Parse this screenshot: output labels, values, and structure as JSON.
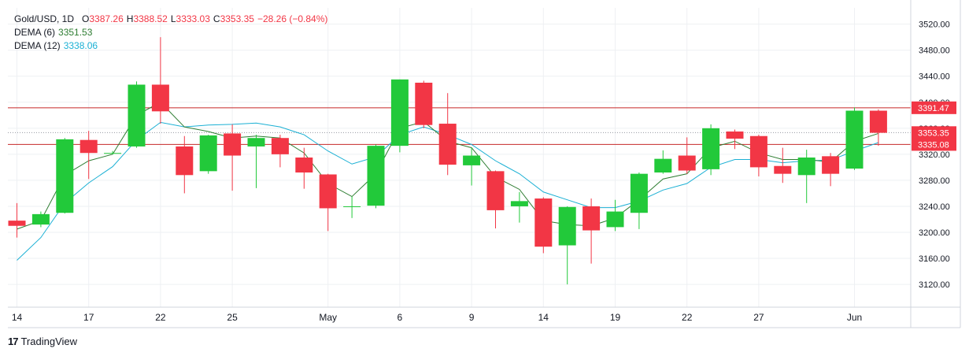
{
  "legend": {
    "symbol": "Gold/USD, 1D",
    "o_label": "O",
    "o": "3387.26",
    "h_label": "H",
    "h": "3388.52",
    "l_label": "L",
    "l": "3333.03",
    "c_label": "C",
    "c": "3353.35",
    "change": "−28.26 (−0.84%)",
    "dema6_label": "DEMA (6)",
    "dema6": "3351.53",
    "dema12_label": "DEMA (12)",
    "dema12": "3338.06"
  },
  "brand": {
    "logo": "17",
    "name": "TradingView"
  },
  "colors": {
    "up": "#22c93a",
    "down": "#f23645",
    "dema6": "#2e7d32",
    "dema12": "#1bb0d4",
    "level": "#c62828",
    "grid": "#eef0f3"
  },
  "chart_data": {
    "type": "candlestick",
    "y_range": [
      3085,
      3545
    ],
    "y_ticks": [
      "3520.00",
      "3480.00",
      "3440.00",
      "3400.00",
      "3360.00",
      "3320.00",
      "3280.00",
      "3240.00",
      "3200.00",
      "3160.00",
      "3120.00"
    ],
    "x_ticks": [
      {
        "index": 0,
        "label": "14"
      },
      {
        "index": 3,
        "label": "17"
      },
      {
        "index": 6,
        "label": "22"
      },
      {
        "index": 9,
        "label": "25"
      },
      {
        "index": 13,
        "label": "May"
      },
      {
        "index": 16,
        "label": "6"
      },
      {
        "index": 19,
        "label": "9"
      },
      {
        "index": 22,
        "label": "14"
      },
      {
        "index": 25,
        "label": "19"
      },
      {
        "index": 28,
        "label": "22"
      },
      {
        "index": 31,
        "label": "27"
      },
      {
        "index": 35,
        "label": "Jun"
      }
    ],
    "candles": [
      {
        "o": 3218,
        "h": 3245,
        "l": 3192,
        "c": 3210
      },
      {
        "o": 3212,
        "h": 3232,
        "l": 3208,
        "c": 3228
      },
      {
        "o": 3230,
        "h": 3345,
        "l": 3229,
        "c": 3343
      },
      {
        "o": 3342,
        "h": 3356,
        "l": 3282,
        "c": 3322
      },
      {
        "o": 3322,
        "h": 3325,
        "l": 3320,
        "c": 3322
      },
      {
        "o": 3332,
        "h": 3432,
        "l": 3330,
        "c": 3427
      },
      {
        "o": 3427,
        "h": 3500,
        "l": 3367,
        "c": 3386
      },
      {
        "o": 3332,
        "h": 3348,
        "l": 3260,
        "c": 3288
      },
      {
        "o": 3294,
        "h": 3350,
        "l": 3290,
        "c": 3349
      },
      {
        "o": 3352,
        "h": 3366,
        "l": 3264,
        "c": 3318
      },
      {
        "o": 3332,
        "h": 3350,
        "l": 3268,
        "c": 3345
      },
      {
        "o": 3345,
        "h": 3350,
        "l": 3300,
        "c": 3320
      },
      {
        "o": 3315,
        "h": 3330,
        "l": 3267,
        "c": 3292
      },
      {
        "o": 3289,
        "h": 3290,
        "l": 3202,
        "c": 3237
      },
      {
        "o": 3240,
        "h": 3255,
        "l": 3222,
        "c": 3240
      },
      {
        "o": 3241,
        "h": 3335,
        "l": 3237,
        "c": 3333
      },
      {
        "o": 3333,
        "h": 3435,
        "l": 3323,
        "c": 3435
      },
      {
        "o": 3430,
        "h": 3433,
        "l": 3360,
        "c": 3365
      },
      {
        "o": 3367,
        "h": 3414,
        "l": 3288,
        "c": 3304
      },
      {
        "o": 3303,
        "h": 3330,
        "l": 3272,
        "c": 3318
      },
      {
        "o": 3294,
        "h": 3295,
        "l": 3206,
        "c": 3234
      },
      {
        "o": 3240,
        "h": 3262,
        "l": 3215,
        "c": 3248
      },
      {
        "o": 3252,
        "h": 3254,
        "l": 3168,
        "c": 3178
      },
      {
        "o": 3180,
        "h": 3240,
        "l": 3120,
        "c": 3239
      },
      {
        "o": 3240,
        "h": 3252,
        "l": 3152,
        "c": 3203
      },
      {
        "o": 3208,
        "h": 3250,
        "l": 3202,
        "c": 3232
      },
      {
        "o": 3230,
        "h": 3292,
        "l": 3205,
        "c": 3290
      },
      {
        "o": 3292,
        "h": 3326,
        "l": 3290,
        "c": 3313
      },
      {
        "o": 3318,
        "h": 3346,
        "l": 3290,
        "c": 3295
      },
      {
        "o": 3297,
        "h": 3366,
        "l": 3288,
        "c": 3360
      },
      {
        "o": 3355,
        "h": 3358,
        "l": 3328,
        "c": 3344
      },
      {
        "o": 3348,
        "h": 3350,
        "l": 3286,
        "c": 3300
      },
      {
        "o": 3302,
        "h": 3330,
        "l": 3276,
        "c": 3290
      },
      {
        "o": 3288,
        "h": 3327,
        "l": 3245,
        "c": 3315
      },
      {
        "o": 3317,
        "h": 3322,
        "l": 3271,
        "c": 3290
      },
      {
        "o": 3298,
        "h": 3392,
        "l": 3296,
        "c": 3387
      },
      {
        "o": 3387,
        "h": 3389,
        "l": 3333,
        "c": 3353
      }
    ],
    "dema6": [
      3205,
      3218,
      3288,
      3310,
      3320,
      3380,
      3400,
      3362,
      3355,
      3345,
      3348,
      3345,
      3322,
      3275,
      3255,
      3290,
      3360,
      3370,
      3340,
      3330,
      3285,
      3266,
      3218,
      3212,
      3210,
      3222,
      3250,
      3282,
      3290,
      3330,
      3340,
      3322,
      3312,
      3312,
      3308,
      3340,
      3352
    ],
    "dema12": [
      3157,
      3192,
      3245,
      3276,
      3301,
      3342,
      3369,
      3362,
      3365,
      3366,
      3368,
      3362,
      3350,
      3325,
      3305,
      3316,
      3350,
      3362,
      3350,
      3335,
      3310,
      3290,
      3262,
      3250,
      3238,
      3238,
      3248,
      3265,
      3275,
      3300,
      3312,
      3312,
      3307,
      3310,
      3311,
      3325,
      3338
    ],
    "levels": [
      {
        "value": 3391.47,
        "label": "3391.47",
        "style": "solid"
      },
      {
        "value": 3353.35,
        "label": "3353.35",
        "style": "dotted"
      },
      {
        "value": 3335.08,
        "label": "3335.08",
        "style": "solid"
      }
    ]
  }
}
